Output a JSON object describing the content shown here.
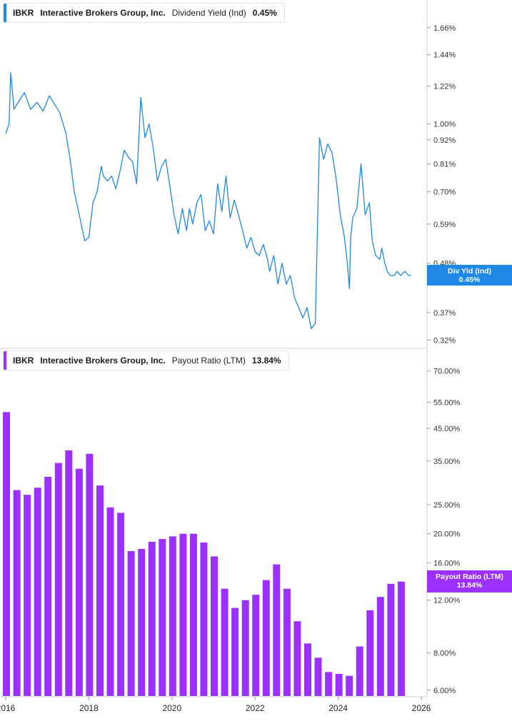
{
  "chart_data": [
    {
      "type": "line",
      "legend": {
        "ticker": "IBKR",
        "company": "Interactive Brokers Group, Inc.",
        "metric": "Dividend Yield (Ind)",
        "value": "0.45%"
      },
      "color": "#1e88e5",
      "y_scale": "log",
      "ylim": [
        0.31,
        1.85
      ],
      "yticks": [
        0.32,
        0.37,
        0.48,
        0.59,
        0.7,
        0.81,
        0.92,
        1.0,
        1.22,
        1.44,
        1.66
      ],
      "ytick_labels": [
        "0.32%",
        "0.37%",
        "0.48%",
        "0.59%",
        "0.70%",
        "0.81%",
        "0.92%",
        "1.00%",
        "1.22%",
        "1.44%",
        "1.66%"
      ],
      "last_value_tag": {
        "label": "Div Yld (Ind)",
        "value": "0.45%",
        "y": 0.45
      },
      "series": [
        {
          "x": [
            2016.0,
            2016.08,
            2016.12,
            2016.2,
            2016.3,
            2016.45,
            2016.6,
            2016.75,
            2016.9,
            2017.05,
            2017.2,
            2017.3,
            2017.45,
            2017.55,
            2017.65,
            2017.8,
            2017.9,
            2018.0,
            2018.1,
            2018.2,
            2018.3,
            2018.35,
            2018.45,
            2018.55,
            2018.65,
            2018.75,
            2018.85,
            2018.95,
            2019.05,
            2019.15,
            2019.25,
            2019.35,
            2019.45,
            2019.55,
            2019.65,
            2019.75,
            2019.85,
            2019.95,
            2020.05,
            2020.15,
            2020.2,
            2020.25,
            2020.35,
            2020.42,
            2020.5,
            2020.6,
            2020.7,
            2020.8,
            2020.9,
            2021.0,
            2021.1,
            2021.2,
            2021.3,
            2021.4,
            2021.5,
            2021.6,
            2021.7,
            2021.8,
            2021.9,
            2022.0,
            2022.1,
            2022.2,
            2022.3,
            2022.35,
            2022.45,
            2022.55,
            2022.65,
            2022.75,
            2022.85,
            2022.95,
            2023.05,
            2023.15,
            2023.25,
            2023.35,
            2023.45,
            2023.55,
            2023.65,
            2023.75,
            2023.85,
            2023.95,
            2024.05,
            2024.15,
            2024.22,
            2024.27,
            2024.3,
            2024.35,
            2024.45,
            2024.55,
            2024.65,
            2024.75,
            2024.82,
            2024.9,
            2025.0,
            2025.05,
            2025.12,
            2025.18,
            2025.25,
            2025.35,
            2025.42,
            2025.5,
            2025.6,
            2025.7,
            2025.75
          ],
          "y": [
            0.95,
            1.0,
            1.31,
            1.08,
            1.12,
            1.18,
            1.08,
            1.12,
            1.07,
            1.16,
            1.1,
            1.06,
            0.95,
            0.83,
            0.7,
            0.6,
            0.54,
            0.55,
            0.66,
            0.7,
            0.8,
            0.76,
            0.74,
            0.76,
            0.71,
            0.78,
            0.87,
            0.84,
            0.82,
            0.73,
            1.15,
            0.93,
            1.0,
            0.88,
            0.74,
            0.8,
            0.83,
            0.72,
            0.62,
            0.56,
            0.6,
            0.64,
            0.57,
            0.64,
            0.59,
            0.66,
            0.69,
            0.57,
            0.6,
            0.56,
            0.73,
            0.63,
            0.76,
            0.61,
            0.67,
            0.62,
            0.57,
            0.52,
            0.55,
            0.51,
            0.5,
            0.53,
            0.49,
            0.46,
            0.5,
            0.43,
            0.48,
            0.43,
            0.45,
            0.4,
            0.38,
            0.36,
            0.38,
            0.34,
            0.35,
            0.93,
            0.83,
            0.9,
            0.86,
            0.75,
            0.62,
            0.55,
            0.48,
            0.42,
            0.55,
            0.61,
            0.64,
            0.81,
            0.62,
            0.66,
            0.54,
            0.5,
            0.49,
            0.52,
            0.48,
            0.46,
            0.45,
            0.45,
            0.46,
            0.45,
            0.46,
            0.45,
            0.45
          ]
        }
      ]
    },
    {
      "type": "bar",
      "legend": {
        "ticker": "IBKR",
        "company": "Interactive Brokers Group, Inc.",
        "metric": "Payout Ratio (LTM)",
        "value": "13.84%"
      },
      "color": "#9b30ff",
      "y_scale": "log",
      "ylim": [
        5.8,
        78
      ],
      "yticks": [
        6,
        8,
        12,
        16,
        20,
        25,
        35,
        45,
        55,
        70
      ],
      "ytick_labels": [
        "6.00%",
        "8.00%",
        "12.00%",
        "16.00%",
        "20.00%",
        "25.00%",
        "35.00%",
        "45.00%",
        "55.00%",
        "70.00%"
      ],
      "last_value_tag": {
        "label": "Payout Ratio (LTM)",
        "value": "13.84%",
        "y": 13.84
      },
      "x": [
        2016.0,
        2016.25,
        2016.5,
        2016.75,
        2017.0,
        2017.25,
        2017.5,
        2017.75,
        2018.0,
        2018.25,
        2018.5,
        2018.75,
        2019.0,
        2019.25,
        2019.5,
        2019.75,
        2020.0,
        2020.25,
        2020.5,
        2020.75,
        2021.0,
        2021.25,
        2021.5,
        2021.75,
        2022.0,
        2022.25,
        2022.5,
        2022.75,
        2023.0,
        2023.25,
        2023.5,
        2023.75,
        2024.0,
        2024.25,
        2024.5,
        2024.75,
        2025.0,
        2025.25,
        2025.5
      ],
      "values": [
        51.0,
        28.0,
        27.0,
        28.5,
        31.0,
        34.5,
        38.0,
        33.0,
        37.0,
        29.0,
        24.5,
        23.5,
        17.5,
        17.8,
        18.8,
        19.2,
        19.6,
        20.0,
        20.0,
        18.7,
        16.8,
        13.1,
        11.3,
        12.0,
        12.5,
        14.0,
        15.8,
        13.1,
        10.2,
        8.6,
        7.7,
        6.9,
        6.8,
        6.7,
        8.4,
        11.1,
        12.3,
        13.6,
        13.84
      ]
    }
  ],
  "x_axis": {
    "ticks": [
      2016,
      2018,
      2020,
      2022,
      2024,
      2026
    ],
    "labels": [
      "2016",
      "2018",
      "2020",
      "2022",
      "2024",
      "2026"
    ]
  }
}
